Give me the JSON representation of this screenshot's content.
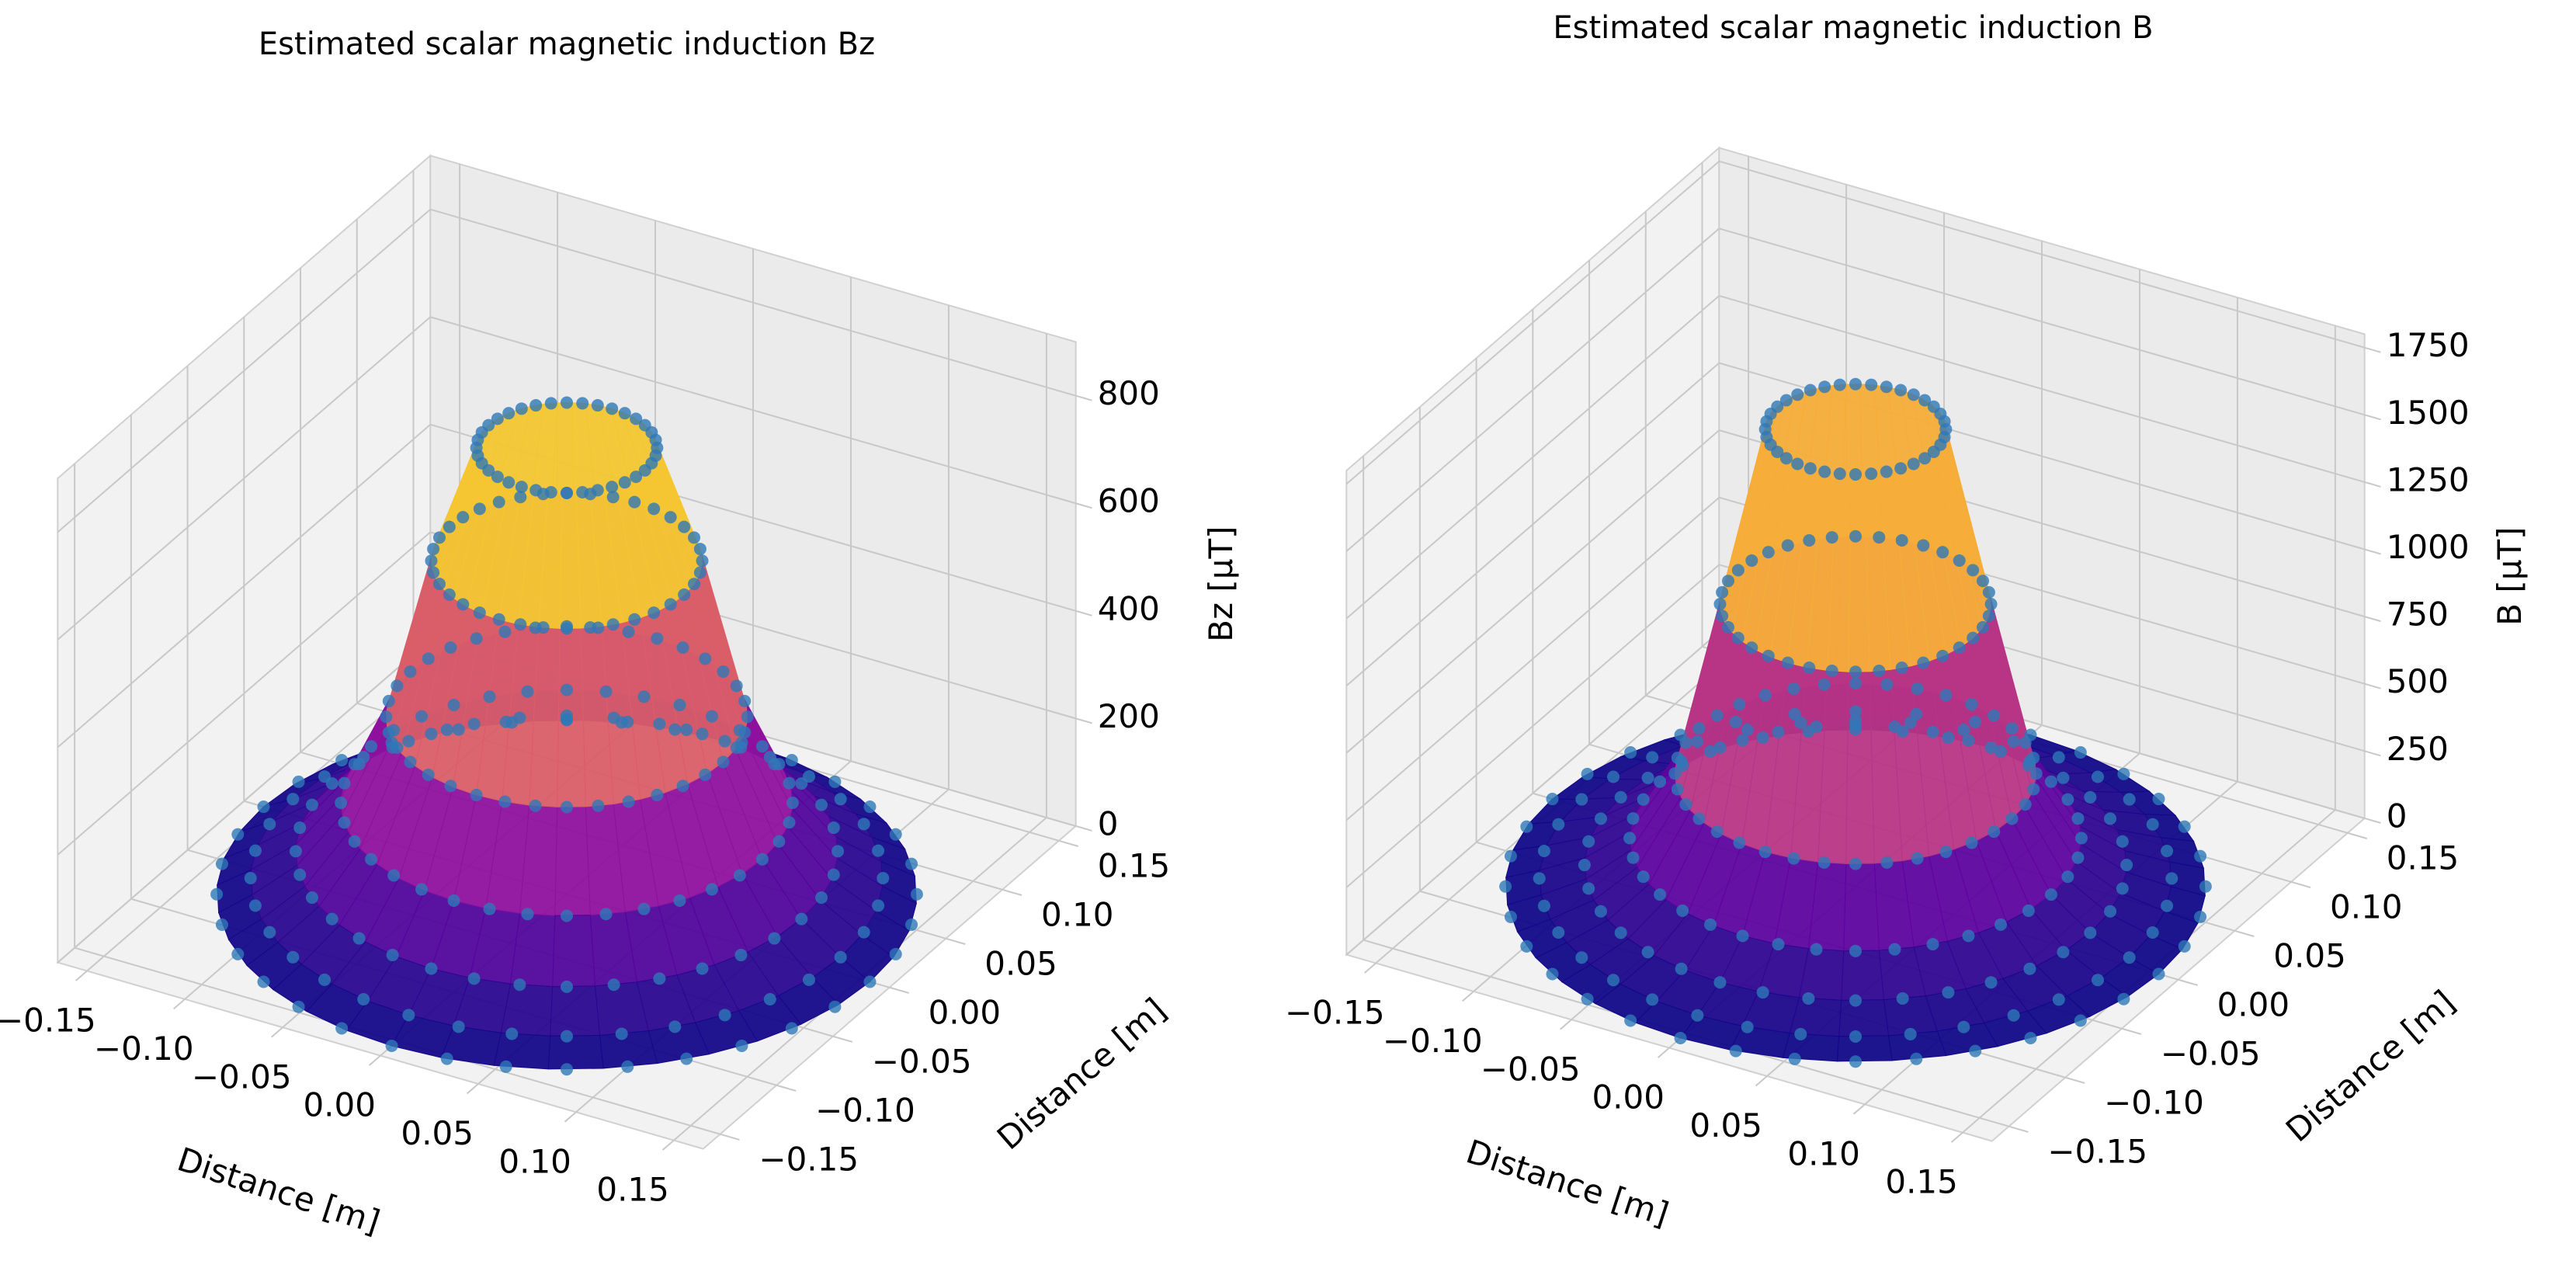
{
  "chart_data": [
    {
      "type": "surface3d",
      "title": "Estimated scalar magnetic induction Bz",
      "xlabel": "Distance [m]",
      "ylabel": "Distance [m]",
      "zlabel": "Bz [μT]",
      "xlim": [
        -0.165,
        0.165
      ],
      "ylim": [
        -0.165,
        0.165
      ],
      "zlim": [
        0,
        900
      ],
      "xticks": [
        {
          "value": -0.15,
          "label": "−0.15"
        },
        {
          "value": -0.1,
          "label": "−0.10"
        },
        {
          "value": -0.05,
          "label": "−0.05"
        },
        {
          "value": 0,
          "label": "0.00"
        },
        0.05,
        {
          "value": 0.1,
          "label": "0.10"
        },
        0.15
      ],
      "yticks": [
        {
          "value": -0.15,
          "label": "−0.15"
        },
        {
          "value": -0.1,
          "label": "−0.10"
        },
        {
          "value": -0.05,
          "label": "−0.05"
        },
        {
          "value": 0,
          "label": "0.00"
        },
        0.05,
        {
          "value": 0.1,
          "label": "0.10"
        },
        0.15
      ],
      "zticks": [
        0,
        200,
        400,
        600,
        800
      ],
      "radii": [
        0.04,
        0.06,
        0.08,
        0.1,
        0.12,
        0.14,
        0.155
      ],
      "values": [
        830,
        620,
        330,
        170,
        80,
        30,
        0
      ],
      "colormap": "plasma",
      "marker_color": "#2e78b8",
      "grid": true
    },
    {
      "type": "surface3d",
      "title": "Estimated scalar magnetic induction B",
      "xlabel": "Distance [m]",
      "ylabel": "Distance [m]",
      "zlabel": "B [μT]",
      "xlim": [
        -0.165,
        0.165
      ],
      "ylim": [
        -0.165,
        0.165
      ],
      "zlim": [
        0,
        1800
      ],
      "xticks": [
        {
          "value": -0.15,
          "label": "−0.15"
        },
        {
          "value": -0.1,
          "label": "−0.10"
        },
        {
          "value": -0.05,
          "label": "−0.05"
        },
        {
          "value": 0,
          "label": "0.00"
        },
        0.05,
        {
          "value": 0.1,
          "label": "0.10"
        },
        0.15
      ],
      "yticks": [
        {
          "value": -0.15,
          "label": "−0.15"
        },
        {
          "value": -0.1,
          "label": "−0.10"
        },
        {
          "value": -0.05,
          "label": "−0.05"
        },
        {
          "value": 0,
          "label": "0.00"
        },
        0.05,
        {
          "value": 0.1,
          "label": "0.10"
        },
        0.15
      ],
      "zticks": [
        0,
        250,
        500,
        750,
        1000,
        1250,
        1500,
        1750
      ],
      "radii": [
        0.04,
        0.06,
        0.08,
        0.1,
        0.12,
        0.14,
        0.155
      ],
      "values": [
        1700,
        1050,
        420,
        180,
        80,
        30,
        0
      ],
      "colormap": "plasma",
      "marker_color": "#2e78b8",
      "grid": true
    }
  ]
}
